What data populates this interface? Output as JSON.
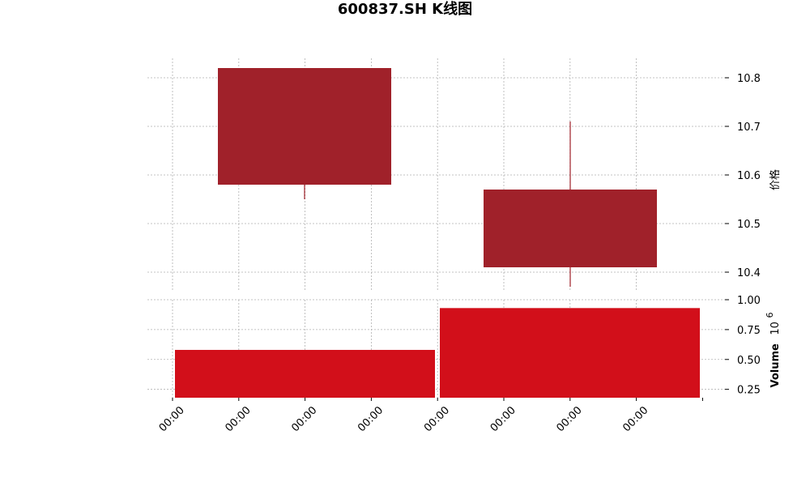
{
  "chart_data": {
    "type": "candlestick",
    "title": "600837.SH K线图",
    "price_panel": {
      "ylabel": "价格",
      "ylim": [
        10.36,
        10.84
      ],
      "yticks": [
        10.4,
        10.5,
        10.6,
        10.7,
        10.8
      ],
      "ytick_labels": [
        "10.4",
        "10.5",
        "10.6",
        "10.7",
        "10.8"
      ],
      "candles": [
        {
          "open": 10.82,
          "close": 10.58,
          "high": 10.82,
          "low": 10.55
        },
        {
          "open": 10.57,
          "close": 10.41,
          "high": 10.71,
          "low": 10.37
        }
      ],
      "candle_color": "#a0212a"
    },
    "volume_panel": {
      "ylabel": "Volume",
      "scale_label": "10",
      "scale_exponent": "6",
      "ylim": [
        0.18,
        1.0
      ],
      "yticks": [
        0.25,
        0.5,
        0.75,
        1.0
      ],
      "ytick_labels": [
        "0.25",
        "0.50",
        "0.75",
        "1.00"
      ],
      "values": [
        0.58,
        0.93
      ],
      "bar_color": "#d20f1a"
    },
    "x_tick_labels": [
      "00:00",
      "00:00",
      "00:00",
      "00:00",
      "00:00",
      "00:00",
      "00:00",
      "00:00"
    ],
    "grid": true
  }
}
